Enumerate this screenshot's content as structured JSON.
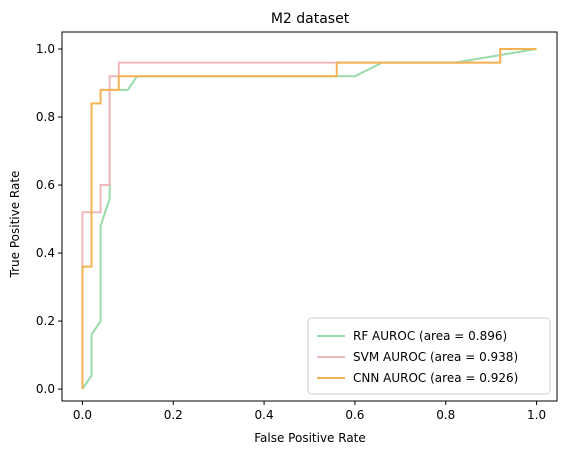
{
  "chart_data": {
    "type": "line",
    "title": "M2 dataset",
    "xlabel": "False Positive Rate",
    "ylabel": "True Positive Rate",
    "xlim": [
      -0.045,
      1.045
    ],
    "ylim": [
      -0.035,
      1.05
    ],
    "xticks": [
      0.0,
      0.2,
      0.4,
      0.6,
      0.8,
      1.0
    ],
    "yticks": [
      0.0,
      0.2,
      0.4,
      0.6,
      0.8,
      1.0
    ],
    "tick_labels_x": [
      "0.0",
      "0.2",
      "0.4",
      "0.6",
      "0.8",
      "1.0"
    ],
    "tick_labels_y": [
      "0.0",
      "0.2",
      "0.4",
      "0.6",
      "0.8",
      "1.0"
    ],
    "grid": false,
    "legend_position": "lower-right",
    "series": [
      {
        "name": "RF AUROC (area = 0.896)",
        "color": "#98dba9",
        "points": [
          [
            0.0,
            0.0
          ],
          [
            0.02,
            0.04
          ],
          [
            0.02,
            0.16
          ],
          [
            0.04,
            0.2
          ],
          [
            0.04,
            0.48
          ],
          [
            0.06,
            0.56
          ],
          [
            0.06,
            0.88
          ],
          [
            0.1,
            0.88
          ],
          [
            0.12,
            0.92
          ],
          [
            0.6,
            0.92
          ],
          [
            0.66,
            0.96
          ],
          [
            0.82,
            0.96
          ],
          [
            1.0,
            1.0
          ]
        ]
      },
      {
        "name": "SVM AUROC (area = 0.938)",
        "color": "#f0b7b9",
        "points": [
          [
            0.0,
            0.0
          ],
          [
            0.0,
            0.52
          ],
          [
            0.04,
            0.52
          ],
          [
            0.04,
            0.6
          ],
          [
            0.06,
            0.6
          ],
          [
            0.06,
            0.92
          ],
          [
            0.08,
            0.92
          ],
          [
            0.08,
            0.96
          ],
          [
            0.92,
            0.96
          ],
          [
            0.92,
            1.0
          ],
          [
            1.0,
            1.0
          ]
        ]
      },
      {
        "name": "CNN AUROC (area = 0.926)",
        "color": "#f4b353",
        "points": [
          [
            0.0,
            0.0
          ],
          [
            0.0,
            0.36
          ],
          [
            0.02,
            0.36
          ],
          [
            0.02,
            0.84
          ],
          [
            0.04,
            0.84
          ],
          [
            0.04,
            0.88
          ],
          [
            0.08,
            0.88
          ],
          [
            0.08,
            0.92
          ],
          [
            0.56,
            0.92
          ],
          [
            0.56,
            0.96
          ],
          [
            0.92,
            0.96
          ],
          [
            0.92,
            1.0
          ],
          [
            1.0,
            1.0
          ]
        ]
      }
    ]
  }
}
